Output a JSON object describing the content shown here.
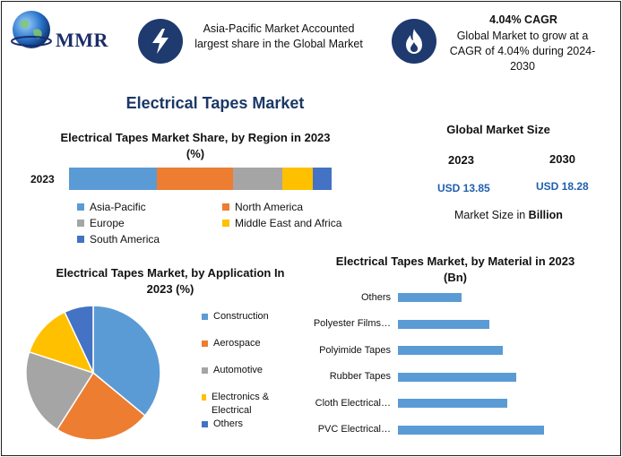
{
  "logo": {
    "text": "MMR"
  },
  "highlights": [
    {
      "icon": "lightning-bolt-icon",
      "title": "",
      "text": "Asia-Pacific Market Accounted largest share in the Global Market"
    },
    {
      "icon": "flame-icon",
      "title": "4.04% CAGR",
      "text": "Global Market to grow at a CAGR of 4.04% during 2024-2030"
    }
  ],
  "main_title": "Electrical Tapes Market",
  "global_market": {
    "title": "Global Market Size",
    "year1": "2023",
    "year2": "2030",
    "value1": "USD 13.85",
    "value2": "USD 18.28",
    "unit_prefix": "Market Size in ",
    "unit_bold": "Billion"
  },
  "colors": {
    "blue": "#5b9bd5",
    "orange": "#ed7d31",
    "gray": "#a5a5a5",
    "yellow": "#ffc000",
    "darkblue": "#4472c4",
    "bar": "#5b9bd5",
    "navy": "#1e3a6e"
  },
  "chart_data": [
    {
      "type": "bar",
      "orientation": "horizontal-stacked",
      "title": "Electrical Tapes Market Share, by Region in 2023 (%)",
      "categories": [
        "2023"
      ],
      "unit": "%",
      "series": [
        {
          "name": "Asia-Pacific",
          "values": [
            32
          ],
          "color": "#5b9bd5"
        },
        {
          "name": "North America",
          "values": [
            28
          ],
          "color": "#ed7d31"
        },
        {
          "name": "Europe",
          "values": [
            18
          ],
          "color": "#a5a5a5"
        },
        {
          "name": "Middle East and Africa",
          "values": [
            11
          ],
          "color": "#ffc000"
        },
        {
          "name": "South America",
          "values": [
            7
          ],
          "color": "#4472c4"
        }
      ],
      "legend": "bottom"
    },
    {
      "type": "pie",
      "title": "Electrical Tapes Market, by Application In 2023 (%)",
      "slices": [
        {
          "name": "Construction",
          "value": 36,
          "color": "#5b9bd5"
        },
        {
          "name": "Aerospace",
          "value": 23,
          "color": "#ed7d31"
        },
        {
          "name": "Automotive",
          "value": 21,
          "color": "#a5a5a5"
        },
        {
          "name": "Electronics & Electrical",
          "value": 13,
          "color": "#ffc000"
        },
        {
          "name": "Others",
          "value": 7,
          "color": "#4472c4"
        }
      ],
      "legend": "right"
    },
    {
      "type": "bar",
      "orientation": "horizontal",
      "title": "Electrical Tapes Market, by  Material in 2023 (Bn)",
      "categories": [
        "Others",
        "Polyester Films…",
        "Polyimide Tapes",
        "Rubber Tapes",
        "Cloth Electrical…",
        "PVC Electrical…"
      ],
      "values": [
        1.4,
        2.0,
        2.3,
        2.6,
        2.4,
        3.2
      ],
      "xlim": [
        0,
        3.5
      ],
      "grid": false,
      "legend": "none"
    }
  ]
}
